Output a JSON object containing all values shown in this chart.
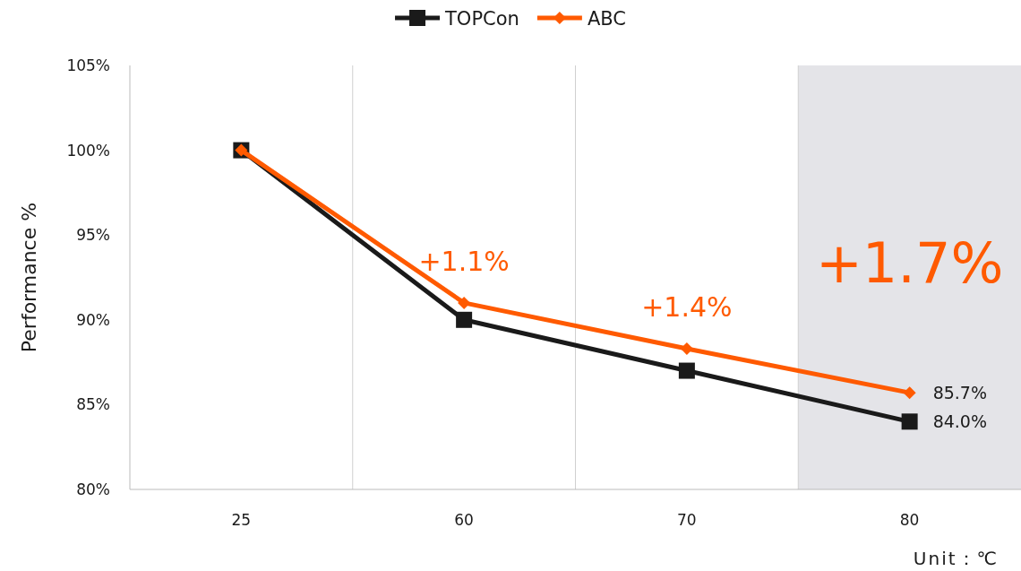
{
  "chart_data": {
    "type": "line",
    "ylabel": "Performance %",
    "xlabel": "Unit：℃",
    "categories": [
      "25",
      "60",
      "70",
      "80"
    ],
    "series": [
      {
        "name": "TOPCon",
        "color": "#1a1a1a",
        "marker": "square",
        "values": [
          100,
          90.0,
          87.0,
          84.0
        ],
        "value_labels": [
          null,
          null,
          null,
          "84.0%"
        ]
      },
      {
        "name": "ABC",
        "color": "#ff5a00",
        "marker": "diamond",
        "values": [
          100,
          91.0,
          88.3,
          85.7
        ],
        "value_labels": [
          null,
          null,
          null,
          "85.7%"
        ]
      }
    ],
    "ylim": [
      80,
      105
    ],
    "yticks": [
      {
        "value": 80,
        "label": "80%"
      },
      {
        "value": 85,
        "label": "85%"
      },
      {
        "value": 90,
        "label": "90%"
      },
      {
        "value": 95,
        "label": "95%"
      },
      {
        "value": 100,
        "label": "100%"
      },
      {
        "value": 105,
        "label": "105%"
      }
    ],
    "grid": "x",
    "legend": "top",
    "line_style": "solid",
    "bands": [
      {
        "axis": "x",
        "from": "80",
        "to": "80",
        "label": "+1.7%",
        "color": "#e4e4e8"
      }
    ],
    "annotations": [
      "+1.1%",
      "+1.4%"
    ]
  }
}
